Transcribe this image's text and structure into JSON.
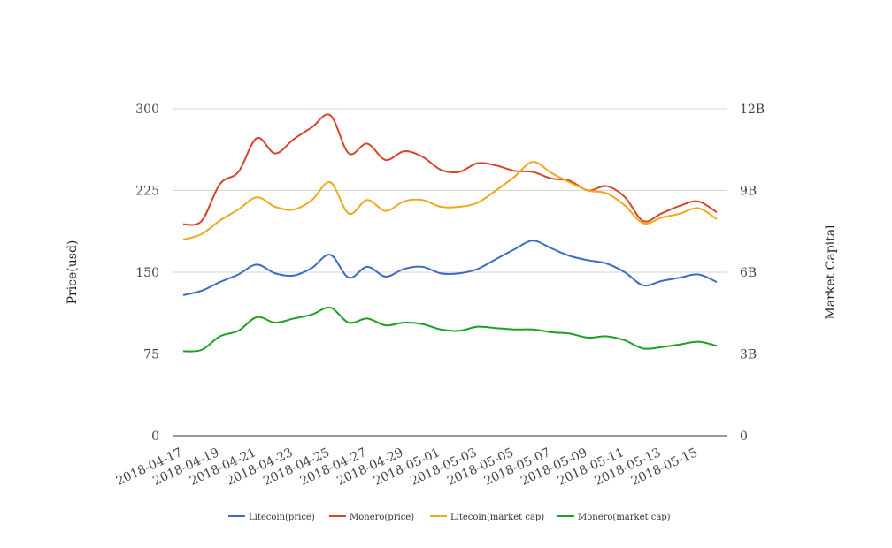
{
  "chart_data": {
    "type": "line",
    "title": "",
    "ylabel_left": "Price(usd)",
    "ylabel_right": "Market Capital",
    "ylim_left": [
      0,
      300
    ],
    "ylim_right": [
      0,
      12000000000
    ],
    "yticks_left": [
      "0",
      "75",
      "150",
      "225",
      "300"
    ],
    "yticks_right": [
      "0",
      "3B",
      "6B",
      "9B",
      "12B"
    ],
    "x_tick_labels": [
      "2018-04-17",
      "2018-04-19",
      "2018-04-21",
      "2018-04-23",
      "2018-04-25",
      "2018-04-27",
      "2018-04-29",
      "2018-05-01",
      "2018-05-03",
      "2018-05-05",
      "2018-05-07",
      "2018-05-09",
      "2018-05-11",
      "2018-05-13",
      "2018-05-15"
    ],
    "grid": true,
    "legend_position": "bottom",
    "x": [
      "2018-04-17",
      "2018-04-18",
      "2018-04-19",
      "2018-04-20",
      "2018-04-21",
      "2018-04-22",
      "2018-04-23",
      "2018-04-24",
      "2018-04-25",
      "2018-04-26",
      "2018-04-27",
      "2018-04-28",
      "2018-04-29",
      "2018-04-30",
      "2018-05-01",
      "2018-05-02",
      "2018-05-03",
      "2018-05-04",
      "2018-05-05",
      "2018-05-06",
      "2018-05-07",
      "2018-05-08",
      "2018-05-09",
      "2018-05-10",
      "2018-05-11",
      "2018-05-12",
      "2018-05-13",
      "2018-05-14",
      "2018-05-15",
      "2018-05-16"
    ],
    "series": [
      {
        "name": "Litecoin(price)",
        "axis": "left",
        "color": "#3d6cc4",
        "values": [
          129,
          133,
          141,
          148,
          157,
          149,
          147,
          154,
          166,
          145,
          155,
          146,
          153,
          155,
          149,
          149,
          153,
          162,
          171,
          179,
          172,
          165,
          161,
          158,
          150,
          138,
          142,
          145,
          148,
          141
        ]
      },
      {
        "name": "Monero(price)",
        "axis": "left",
        "color": "#d5462a",
        "values": [
          194,
          197,
          231,
          242,
          273,
          259,
          272,
          283,
          294,
          259,
          268,
          253,
          261,
          256,
          244,
          242,
          250,
          248,
          243,
          242,
          236,
          234,
          225,
          229,
          219,
          197,
          204,
          211,
          215,
          205
        ]
      },
      {
        "name": "Litecoin(market cap)",
        "axis": "right",
        "color": "#f0a81c",
        "values": [
          7200000000,
          7400000000,
          7900000000,
          8300000000,
          8750000000,
          8400000000,
          8300000000,
          8650000000,
          9300000000,
          8150000000,
          8650000000,
          8250000000,
          8600000000,
          8650000000,
          8400000000,
          8400000000,
          8550000000,
          9000000000,
          9500000000,
          10050000000,
          9650000000,
          9300000000,
          9000000000,
          8900000000,
          8450000000,
          7800000000,
          8000000000,
          8150000000,
          8350000000,
          7950000000
        ]
      },
      {
        "name": "Monero(market cap)",
        "axis": "right",
        "color": "#1e9f26",
        "values": [
          3100000000,
          3150000000,
          3650000000,
          3850000000,
          4350000000,
          4150000000,
          4300000000,
          4450000000,
          4700000000,
          4150000000,
          4300000000,
          4050000000,
          4150000000,
          4100000000,
          3900000000,
          3850000000,
          4000000000,
          3950000000,
          3900000000,
          3900000000,
          3800000000,
          3750000000,
          3600000000,
          3650000000,
          3500000000,
          3200000000,
          3250000000,
          3350000000,
          3450000000,
          3300000000
        ]
      }
    ]
  }
}
